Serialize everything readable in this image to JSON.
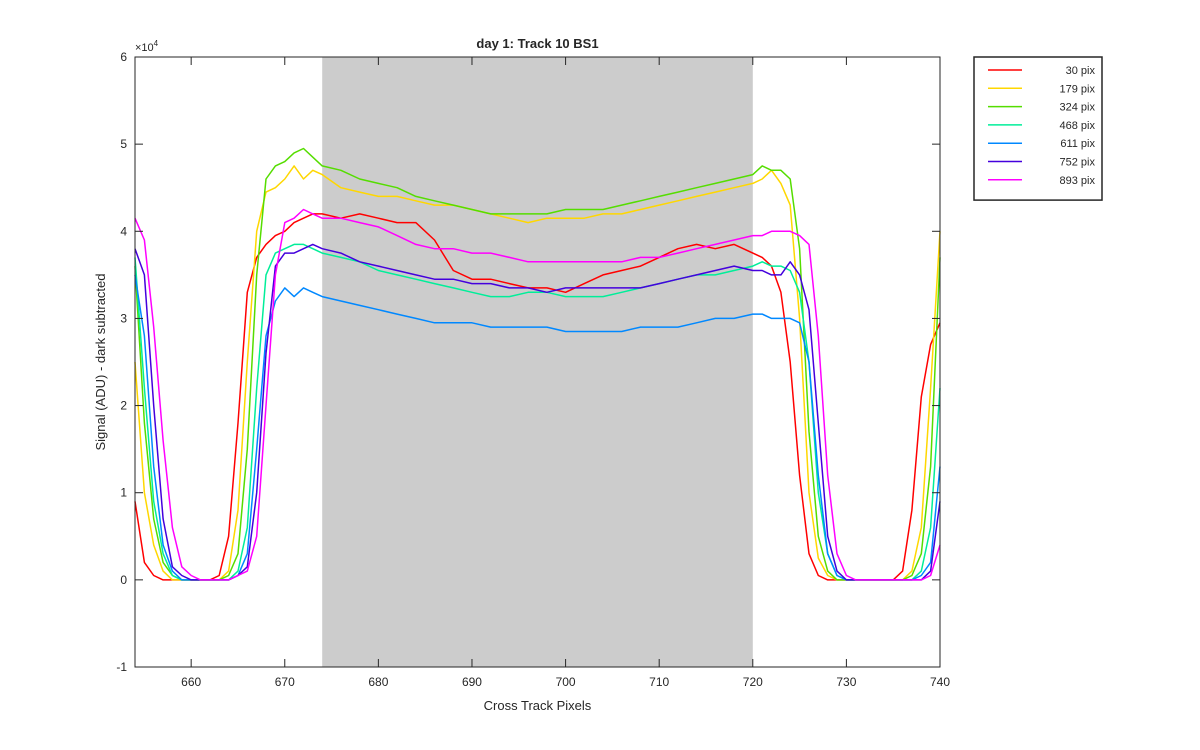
{
  "chart_data": {
    "type": "line",
    "title": "day 1: Track 10  BS1",
    "xlabel": "Cross Track Pixels",
    "ylabel": "Signal (ADU) - dark subtracted",
    "y_exponent_label": "×10",
    "y_exponent_power": "4",
    "xlim": [
      654,
      740
    ],
    "ylim": [
      -1,
      6
    ],
    "y_scale_factor": 10000,
    "xticks": [
      660,
      670,
      680,
      690,
      700,
      710,
      720,
      730,
      740
    ],
    "yticks": [
      -1,
      0,
      1,
      2,
      3,
      4,
      5,
      6
    ],
    "shaded_region": {
      "x_start": 674,
      "x_end": 720,
      "color": "#cccccc"
    },
    "legend_position": "outside-top-right",
    "grid": false,
    "series": [
      {
        "name": "30 pix",
        "color": "#ff0000",
        "x": [
          654,
          655,
          656,
          657,
          658,
          659,
          660,
          661,
          662,
          663,
          664,
          665,
          666,
          667,
          668,
          669,
          670,
          671,
          672,
          673,
          674,
          676,
          678,
          680,
          682,
          684,
          686,
          688,
          690,
          692,
          694,
          696,
          698,
          700,
          702,
          704,
          706,
          708,
          710,
          712,
          714,
          716,
          718,
          720,
          721,
          722,
          723,
          724,
          725,
          726,
          727,
          728,
          729,
          730,
          731,
          732,
          733,
          734,
          735,
          736,
          737,
          738,
          739,
          740
        ],
        "y": [
          0.9,
          0.2,
          0.05,
          0.0,
          0.0,
          0.0,
          0.0,
          0.0,
          0.0,
          0.05,
          0.5,
          1.8,
          3.3,
          3.7,
          3.85,
          3.95,
          4.0,
          4.1,
          4.15,
          4.2,
          4.2,
          4.15,
          4.2,
          4.15,
          4.1,
          4.1,
          3.9,
          3.55,
          3.45,
          3.45,
          3.4,
          3.35,
          3.35,
          3.3,
          3.4,
          3.5,
          3.55,
          3.6,
          3.7,
          3.8,
          3.85,
          3.8,
          3.85,
          3.75,
          3.7,
          3.6,
          3.3,
          2.5,
          1.2,
          0.3,
          0.05,
          0.0,
          0.0,
          0.0,
          0.0,
          0.0,
          0.0,
          0.0,
          0.0,
          0.1,
          0.8,
          2.1,
          2.7,
          2.95
        ]
      },
      {
        "name": "179 pix",
        "color": "#ffd700",
        "x": [
          654,
          655,
          656,
          657,
          658,
          659,
          660,
          661,
          662,
          663,
          664,
          665,
          666,
          667,
          668,
          669,
          670,
          671,
          672,
          673,
          674,
          676,
          678,
          680,
          682,
          684,
          686,
          688,
          690,
          692,
          694,
          696,
          698,
          700,
          702,
          704,
          706,
          708,
          710,
          712,
          714,
          716,
          718,
          720,
          721,
          722,
          723,
          724,
          725,
          726,
          727,
          728,
          729,
          730,
          731,
          732,
          733,
          734,
          735,
          736,
          737,
          738,
          739,
          740
        ],
        "y": [
          2.5,
          1.0,
          0.4,
          0.1,
          0.0,
          0.0,
          0.0,
          0.0,
          0.0,
          0.0,
          0.1,
          0.8,
          2.5,
          4.0,
          4.45,
          4.5,
          4.6,
          4.75,
          4.6,
          4.7,
          4.65,
          4.5,
          4.45,
          4.4,
          4.4,
          4.35,
          4.3,
          4.3,
          4.25,
          4.2,
          4.15,
          4.1,
          4.15,
          4.15,
          4.15,
          4.2,
          4.2,
          4.25,
          4.3,
          4.35,
          4.4,
          4.45,
          4.5,
          4.55,
          4.6,
          4.7,
          4.55,
          4.3,
          3.0,
          1.0,
          0.25,
          0.05,
          0.0,
          0.0,
          0.0,
          0.0,
          0.0,
          0.0,
          0.0,
          0.0,
          0.1,
          0.6,
          2.2,
          4.0
        ]
      },
      {
        "name": "324 pix",
        "color": "#55dd00",
        "x": [
          654,
          655,
          656,
          657,
          658,
          659,
          660,
          661,
          662,
          663,
          664,
          665,
          666,
          667,
          668,
          669,
          670,
          671,
          672,
          673,
          674,
          676,
          678,
          680,
          682,
          684,
          686,
          688,
          690,
          692,
          694,
          696,
          698,
          700,
          702,
          704,
          706,
          708,
          710,
          712,
          714,
          716,
          718,
          720,
          721,
          722,
          723,
          724,
          725,
          726,
          727,
          728,
          729,
          730,
          731,
          732,
          733,
          734,
          735,
          736,
          737,
          738,
          739,
          740
        ],
        "y": [
          3.6,
          1.8,
          0.7,
          0.2,
          0.05,
          0.0,
          0.0,
          0.0,
          0.0,
          0.0,
          0.05,
          0.3,
          1.5,
          3.5,
          4.6,
          4.75,
          4.8,
          4.9,
          4.95,
          4.85,
          4.75,
          4.7,
          4.6,
          4.55,
          4.5,
          4.4,
          4.35,
          4.3,
          4.25,
          4.2,
          4.2,
          4.2,
          4.2,
          4.25,
          4.25,
          4.25,
          4.3,
          4.35,
          4.4,
          4.45,
          4.5,
          4.55,
          4.6,
          4.65,
          4.75,
          4.7,
          4.7,
          4.6,
          3.8,
          1.7,
          0.5,
          0.1,
          0.0,
          0.0,
          0.0,
          0.0,
          0.0,
          0.0,
          0.0,
          0.0,
          0.05,
          0.3,
          1.3,
          3.7
        ]
      },
      {
        "name": "468 pix",
        "color": "#00ee99",
        "x": [
          654,
          655,
          656,
          657,
          658,
          659,
          660,
          661,
          662,
          663,
          664,
          665,
          666,
          667,
          668,
          669,
          670,
          671,
          672,
          673,
          674,
          676,
          678,
          680,
          682,
          684,
          686,
          688,
          690,
          692,
          694,
          696,
          698,
          700,
          702,
          704,
          706,
          708,
          710,
          712,
          714,
          716,
          718,
          720,
          721,
          722,
          723,
          724,
          725,
          726,
          727,
          728,
          729,
          730,
          731,
          732,
          733,
          734,
          735,
          736,
          737,
          738,
          739,
          740
        ],
        "y": [
          3.7,
          2.2,
          0.9,
          0.3,
          0.05,
          0.0,
          0.0,
          0.0,
          0.0,
          0.0,
          0.0,
          0.1,
          0.6,
          2.2,
          3.5,
          3.75,
          3.8,
          3.85,
          3.85,
          3.8,
          3.75,
          3.7,
          3.65,
          3.55,
          3.5,
          3.45,
          3.4,
          3.35,
          3.3,
          3.25,
          3.25,
          3.3,
          3.3,
          3.25,
          3.25,
          3.25,
          3.3,
          3.35,
          3.4,
          3.45,
          3.5,
          3.5,
          3.55,
          3.6,
          3.65,
          3.6,
          3.6,
          3.55,
          3.3,
          2.5,
          1.0,
          0.3,
          0.05,
          0.0,
          0.0,
          0.0,
          0.0,
          0.0,
          0.0,
          0.0,
          0.0,
          0.1,
          0.6,
          2.2
        ]
      },
      {
        "name": "611 pix",
        "color": "#0088ff",
        "x": [
          654,
          655,
          656,
          657,
          658,
          659,
          660,
          661,
          662,
          663,
          664,
          665,
          666,
          667,
          668,
          669,
          670,
          671,
          672,
          673,
          674,
          676,
          678,
          680,
          682,
          684,
          686,
          688,
          690,
          692,
          694,
          696,
          698,
          700,
          702,
          704,
          706,
          708,
          710,
          712,
          714,
          716,
          718,
          720,
          721,
          722,
          723,
          724,
          725,
          726,
          727,
          728,
          729,
          730,
          731,
          732,
          733,
          734,
          735,
          736,
          737,
          738,
          739,
          740
        ],
        "y": [
          3.5,
          2.8,
          1.3,
          0.4,
          0.1,
          0.0,
          0.0,
          0.0,
          0.0,
          0.0,
          0.0,
          0.05,
          0.3,
          1.5,
          2.8,
          3.2,
          3.35,
          3.25,
          3.35,
          3.3,
          3.25,
          3.2,
          3.15,
          3.1,
          3.05,
          3.0,
          2.95,
          2.95,
          2.95,
          2.9,
          2.9,
          2.9,
          2.9,
          2.85,
          2.85,
          2.85,
          2.85,
          2.9,
          2.9,
          2.9,
          2.95,
          3.0,
          3.0,
          3.05,
          3.05,
          3.0,
          3.0,
          3.0,
          2.95,
          2.5,
          1.2,
          0.3,
          0.05,
          0.0,
          0.0,
          0.0,
          0.0,
          0.0,
          0.0,
          0.0,
          0.0,
          0.05,
          0.2,
          1.3
        ]
      },
      {
        "name": "752 pix",
        "color": "#4400dd",
        "x": [
          654,
          655,
          656,
          657,
          658,
          659,
          660,
          661,
          662,
          663,
          664,
          665,
          666,
          667,
          668,
          669,
          670,
          671,
          672,
          673,
          674,
          676,
          678,
          680,
          682,
          684,
          686,
          688,
          690,
          692,
          694,
          696,
          698,
          700,
          702,
          704,
          706,
          708,
          710,
          712,
          714,
          716,
          718,
          720,
          721,
          722,
          723,
          724,
          725,
          726,
          727,
          728,
          729,
          730,
          731,
          732,
          733,
          734,
          735,
          736,
          737,
          738,
          739,
          740
        ],
        "y": [
          3.8,
          3.5,
          2.0,
          0.7,
          0.15,
          0.05,
          0.0,
          0.0,
          0.0,
          0.0,
          0.0,
          0.05,
          0.15,
          1.0,
          2.6,
          3.6,
          3.75,
          3.75,
          3.8,
          3.85,
          3.8,
          3.75,
          3.65,
          3.6,
          3.55,
          3.5,
          3.45,
          3.45,
          3.4,
          3.4,
          3.35,
          3.35,
          3.3,
          3.35,
          3.35,
          3.35,
          3.35,
          3.35,
          3.4,
          3.45,
          3.5,
          3.55,
          3.6,
          3.55,
          3.55,
          3.5,
          3.5,
          3.65,
          3.5,
          3.1,
          1.8,
          0.5,
          0.1,
          0.0,
          0.0,
          0.0,
          0.0,
          0.0,
          0.0,
          0.0,
          0.0,
          0.0,
          0.1,
          0.9
        ]
      },
      {
        "name": "893 pix",
        "color": "#ff00ff",
        "x": [
          654,
          655,
          656,
          657,
          658,
          659,
          660,
          661,
          662,
          663,
          664,
          665,
          666,
          667,
          668,
          669,
          670,
          671,
          672,
          673,
          674,
          676,
          678,
          680,
          682,
          684,
          686,
          688,
          690,
          692,
          694,
          696,
          698,
          700,
          702,
          704,
          706,
          708,
          710,
          712,
          714,
          716,
          718,
          720,
          721,
          722,
          723,
          724,
          725,
          726,
          727,
          728,
          729,
          730,
          731,
          732,
          733,
          734,
          735,
          736,
          737,
          738,
          739,
          740
        ],
        "y": [
          4.15,
          3.9,
          2.9,
          1.6,
          0.6,
          0.15,
          0.05,
          0.0,
          0.0,
          0.0,
          0.0,
          0.05,
          0.1,
          0.5,
          2.0,
          3.5,
          4.1,
          4.15,
          4.25,
          4.2,
          4.15,
          4.15,
          4.1,
          4.05,
          3.95,
          3.85,
          3.8,
          3.8,
          3.75,
          3.75,
          3.7,
          3.65,
          3.65,
          3.65,
          3.65,
          3.65,
          3.65,
          3.7,
          3.7,
          3.75,
          3.8,
          3.85,
          3.9,
          3.95,
          3.95,
          4.0,
          4.0,
          4.0,
          3.95,
          3.85,
          2.8,
          1.2,
          0.3,
          0.05,
          0.0,
          0.0,
          0.0,
          0.0,
          0.0,
          0.0,
          0.0,
          0.0,
          0.05,
          0.4
        ]
      }
    ]
  }
}
